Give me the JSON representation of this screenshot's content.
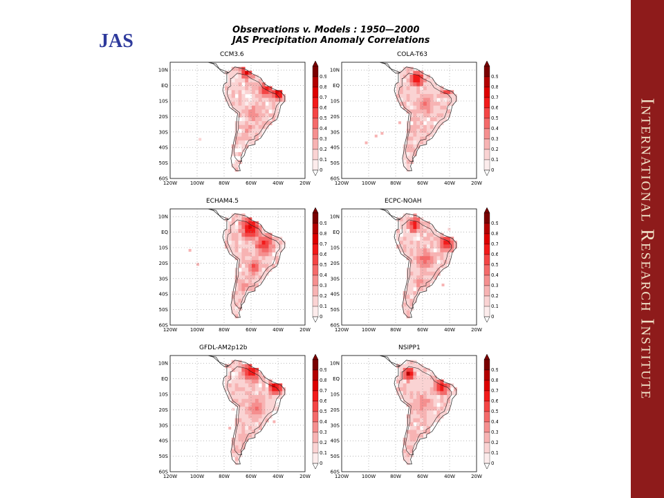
{
  "slide": {
    "label": "JAS",
    "band_text": "International Research Institute",
    "band_color": "#8e1b1b"
  },
  "figure": {
    "title_line1": "Observations v. Models : 1950—2000",
    "title_line2": "JAS Precipitation Anomaly Correlations"
  },
  "axes": {
    "lat_labels": [
      "10N",
      "EQ",
      "10S",
      "20S",
      "30S",
      "40S",
      "50S",
      "60S"
    ],
    "lon_labels": [
      "120W",
      "100W",
      "80W",
      "60W",
      "40W",
      "20W"
    ]
  },
  "colorbar": {
    "levels": [
      "0.9",
      "0.8",
      "0.7",
      "0.6",
      "0.5",
      "0.4",
      "0.3",
      "0.2",
      "0.1",
      "0"
    ],
    "colors": [
      "#7a0000",
      "#b30000",
      "#dd0000",
      "#f21a1a",
      "#f44545",
      "#f46a6a",
      "#f58f8f",
      "#f7b3b3",
      "#fad3d3",
      "#fcecec"
    ]
  },
  "panels": [
    {
      "name": "CCM3.6"
    },
    {
      "name": "COLA-T63"
    },
    {
      "name": "ECHAM4.5"
    },
    {
      "name": "ECPC-NOAH"
    },
    {
      "name": "GFDL-AM2p12b"
    },
    {
      "name": "NSIPP1"
    }
  ]
}
